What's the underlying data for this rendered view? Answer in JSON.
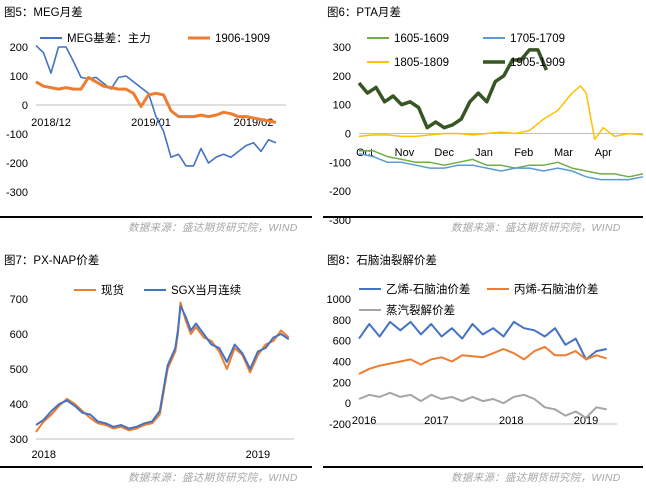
{
  "charts": [
    {
      "title": "图5：MEG月差",
      "source": "数据来源：盛达期货研究院，WIND",
      "chart_data": {
        "type": "line",
        "ylim": [
          -300,
          200
        ],
        "yticks": [
          "200",
          "100",
          "0",
          "-100",
          "-200",
          "-300"
        ],
        "xlim": [
          0,
          10
        ],
        "xticks": [
          {
            "pos": 0.6,
            "label": "2018/12"
          },
          {
            "pos": 4.6,
            "label": "2019/01"
          },
          {
            "pos": 8.7,
            "label": "2019/02"
          }
        ],
        "legend_position": "top",
        "grid": false,
        "series": [
          {
            "name": "MEG基差：主力",
            "color": "#4472c4",
            "width": 1.6,
            "x": [
              0,
              0.3,
              0.6,
              0.9,
              1.2,
              1.5,
              1.8,
              2.1,
              2.4,
              2.7,
              3.0,
              3.3,
              3.6,
              3.9,
              4.2,
              4.5,
              4.8,
              5.1,
              5.4,
              5.7,
              6.0,
              6.3,
              6.6,
              6.9,
              7.2,
              7.5,
              7.8,
              8.1,
              8.4,
              8.7,
              9.0,
              9.3,
              9.6
            ],
            "y": [
              205,
              180,
              110,
              200,
              200,
              150,
              95,
              90,
              95,
              75,
              55,
              95,
              100,
              80,
              60,
              40,
              -40,
              -90,
              -180,
              -170,
              -210,
              -210,
              -150,
              -200,
              -180,
              -170,
              -180,
              -160,
              -140,
              -130,
              -160,
              -120,
              -130
            ]
          },
          {
            "name": "1906-1909",
            "color": "#ed7d31",
            "width": 3,
            "x": [
              0,
              0.3,
              0.6,
              0.9,
              1.2,
              1.5,
              1.8,
              2.1,
              2.4,
              2.7,
              3.0,
              3.3,
              3.6,
              3.9,
              4.2,
              4.5,
              4.8,
              5.1,
              5.4,
              5.7,
              6.0,
              6.3,
              6.6,
              6.9,
              7.2,
              7.5,
              7.8,
              8.1,
              8.4,
              8.7,
              9.0,
              9.3,
              9.6
            ],
            "y": [
              80,
              65,
              60,
              55,
              60,
              55,
              55,
              95,
              80,
              65,
              60,
              55,
              55,
              40,
              -5,
              35,
              40,
              35,
              -20,
              -40,
              -40,
              -40,
              -35,
              -40,
              -35,
              -25,
              -30,
              -40,
              -40,
              -45,
              -50,
              -55,
              -60
            ]
          }
        ]
      }
    },
    {
      "title": "图6：PTA月差",
      "source": "数据来源：盛达期货研究院，WIND",
      "chart_data": {
        "type": "line",
        "ylim": [
          -300,
          300
        ],
        "yticks": [
          "300",
          "200",
          "100",
          "0",
          "-100",
          "-200",
          "-300"
        ],
        "xlim": [
          0,
          10
        ],
        "xticks": [
          {
            "pos": 0.2,
            "label": "Oct"
          },
          {
            "pos": 1.6,
            "label": "Nov"
          },
          {
            "pos": 3.0,
            "label": "Dec"
          },
          {
            "pos": 4.4,
            "label": "Jan"
          },
          {
            "pos": 5.8,
            "label": "Feb"
          },
          {
            "pos": 7.2,
            "label": "Mar"
          },
          {
            "pos": 8.6,
            "label": "Apr"
          }
        ],
        "legend_position": "top",
        "grid": false,
        "series": [
          {
            "name": "1605-1609",
            "color": "#70ad47",
            "width": 1.5,
            "x": [
              0,
              0.5,
              1.0,
              1.5,
              2.0,
              2.5,
              3.0,
              3.5,
              4.0,
              4.5,
              5.0,
              5.5,
              6.0,
              6.5,
              7.0,
              7.5,
              8.0,
              8.5,
              9.0,
              9.5,
              10.0
            ],
            "y": [
              -60,
              -60,
              -80,
              -90,
              -100,
              -100,
              -110,
              -100,
              -90,
              -110,
              -110,
              -120,
              -110,
              -110,
              -100,
              -120,
              -130,
              -140,
              -140,
              -150,
              -140
            ]
          },
          {
            "name": "1705-1709",
            "color": "#5b9bd5",
            "width": 1.5,
            "x": [
              0,
              0.5,
              1.0,
              1.5,
              2.0,
              2.5,
              3.0,
              3.5,
              4.0,
              4.5,
              5.0,
              5.5,
              6.0,
              6.5,
              7.0,
              7.5,
              8.0,
              8.5,
              9.0,
              9.5,
              10.0
            ],
            "y": [
              -70,
              -80,
              -100,
              -100,
              -110,
              -120,
              -120,
              -110,
              -110,
              -120,
              -130,
              -120,
              -120,
              -130,
              -120,
              -130,
              -150,
              -160,
              -160,
              -160,
              -150
            ]
          },
          {
            "name": "1805-1809",
            "color": "#ffc000",
            "width": 1.5,
            "x": [
              0,
              0.5,
              1.0,
              1.5,
              2.0,
              2.5,
              3.0,
              3.5,
              4.0,
              4.5,
              5.0,
              5.5,
              6.0,
              6.5,
              7.0,
              7.5,
              7.8,
              8.0,
              8.3,
              8.6,
              9.0,
              9.5,
              10.0
            ],
            "y": [
              -10,
              -5,
              -5,
              -10,
              -10,
              -5,
              0,
              0,
              -5,
              0,
              5,
              0,
              10,
              50,
              80,
              140,
              165,
              140,
              -20,
              20,
              -10,
              0,
              -5
            ]
          },
          {
            "name": "1905-1909",
            "color": "#375623",
            "width": 3.5,
            "x": [
              0,
              0.3,
              0.6,
              0.9,
              1.2,
              1.5,
              1.8,
              2.1,
              2.4,
              2.7,
              3.0,
              3.3,
              3.6,
              3.9,
              4.2,
              4.5,
              4.8,
              5.1,
              5.4,
              5.7,
              6.0,
              6.3,
              6.6
            ],
            "y": [
              175,
              140,
              160,
              110,
              130,
              100,
              110,
              90,
              20,
              40,
              20,
              30,
              50,
              110,
              140,
              110,
              180,
              200,
              255,
              255,
              290,
              290,
              220
            ]
          }
        ]
      }
    },
    {
      "title": "图7：PX-NAP价差",
      "source": "数据来源：盛达期货研究院，WIND",
      "chart_data": {
        "type": "line",
        "ylim": [
          300,
          700
        ],
        "yticks": [
          "700",
          "600",
          "500",
          "400",
          "300"
        ],
        "xlim": [
          0,
          10
        ],
        "xticks": [
          {
            "pos": 0.3,
            "label": "2018"
          },
          {
            "pos": 8.6,
            "label": "2019"
          }
        ],
        "legend_position": "top",
        "grid": false,
        "series": [
          {
            "name": "现货",
            "color": "#ed7d31",
            "width": 2,
            "x": [
              0,
              0.3,
              0.6,
              0.9,
              1.2,
              1.5,
              1.8,
              2.1,
              2.4,
              2.7,
              3.0,
              3.3,
              3.6,
              3.9,
              4.2,
              4.5,
              4.8,
              5.1,
              5.4,
              5.5,
              5.6,
              5.8,
              6.0,
              6.2,
              6.5,
              6.8,
              7.1,
              7.4,
              7.7,
              8.0,
              8.3,
              8.6,
              8.9,
              9.2,
              9.5,
              9.8
            ],
            "y": [
              320,
              350,
              370,
              395,
              415,
              400,
              380,
              360,
              345,
              340,
              330,
              335,
              325,
              330,
              340,
              345,
              370,
              500,
              550,
              600,
              690,
              640,
              600,
              620,
              590,
              580,
              550,
              500,
              560,
              540,
              490,
              540,
              570,
              580,
              610,
              590
            ]
          },
          {
            "name": "SGX当月连续",
            "color": "#4472c4",
            "width": 2,
            "x": [
              0,
              0.3,
              0.6,
              0.9,
              1.2,
              1.5,
              1.8,
              2.1,
              2.4,
              2.7,
              3.0,
              3.3,
              3.6,
              3.9,
              4.2,
              4.5,
              4.8,
              5.1,
              5.4,
              5.5,
              5.6,
              5.8,
              6.0,
              6.2,
              6.5,
              6.8,
              7.1,
              7.4,
              7.7,
              8.0,
              8.3,
              8.6,
              8.9,
              9.2,
              9.5,
              9.8
            ],
            "y": [
              340,
              355,
              380,
              400,
              410,
              395,
              375,
              370,
              350,
              345,
              335,
              340,
              330,
              335,
              345,
              350,
              380,
              510,
              560,
              610,
              680,
              650,
              610,
              630,
              600,
              570,
              560,
              520,
              570,
              545,
              500,
              550,
              560,
              590,
              600,
              585
            ]
          }
        ]
      }
    },
    {
      "title": "图8：石脑油裂解价差",
      "source": "数据来源：盛达期货研究院，WIND",
      "chart_data": {
        "type": "line",
        "ylim": [
          -200,
          1000
        ],
        "yticks": [
          "1000",
          "800",
          "600",
          "400",
          "200",
          "0",
          "-200"
        ],
        "xlim": [
          0,
          10
        ],
        "xticks": [
          {
            "pos": 0.2,
            "label": "2016"
          },
          {
            "pos": 3.0,
            "label": "2017"
          },
          {
            "pos": 5.9,
            "label": "2018"
          },
          {
            "pos": 8.8,
            "label": "2019"
          }
        ],
        "legend_position": "top",
        "grid": false,
        "series": [
          {
            "name": "乙烯-石脑油价差",
            "color": "#4472c4",
            "width": 2,
            "x": [
              0,
              0.4,
              0.8,
              1.2,
              1.6,
              2.0,
              2.4,
              2.8,
              3.2,
              3.6,
              4.0,
              4.4,
              4.8,
              5.2,
              5.6,
              6.0,
              6.4,
              6.8,
              7.2,
              7.6,
              8.0,
              8.4,
              8.8,
              9.2,
              9.6
            ],
            "y": [
              620,
              760,
              640,
              780,
              700,
              780,
              660,
              760,
              640,
              720,
              620,
              760,
              660,
              720,
              640,
              780,
              720,
              700,
              640,
              720,
              560,
              620,
              420,
              500,
              520
            ]
          },
          {
            "name": "丙烯-石脑油价差",
            "color": "#ed7d31",
            "width": 2,
            "x": [
              0,
              0.4,
              0.8,
              1.2,
              1.6,
              2.0,
              2.4,
              2.8,
              3.2,
              3.6,
              4.0,
              4.4,
              4.8,
              5.2,
              5.6,
              6.0,
              6.4,
              6.8,
              7.2,
              7.6,
              8.0,
              8.4,
              8.8,
              9.2,
              9.6
            ],
            "y": [
              280,
              330,
              360,
              380,
              400,
              420,
              370,
              420,
              440,
              400,
              460,
              450,
              440,
              480,
              520,
              480,
              420,
              500,
              540,
              460,
              460,
              500,
              420,
              460,
              430
            ]
          },
          {
            "name": "蒸汽裂解价差",
            "color": "#a5a5a5",
            "width": 2,
            "x": [
              0,
              0.4,
              0.8,
              1.2,
              1.6,
              2.0,
              2.4,
              2.8,
              3.2,
              3.6,
              4.0,
              4.4,
              4.8,
              5.2,
              5.6,
              6.0,
              6.4,
              6.8,
              7.2,
              7.6,
              8.0,
              8.4,
              8.8,
              9.2,
              9.6
            ],
            "y": [
              40,
              80,
              60,
              100,
              60,
              80,
              20,
              80,
              40,
              60,
              20,
              60,
              20,
              40,
              0,
              60,
              80,
              40,
              -40,
              -60,
              -120,
              -80,
              -140,
              -40,
              -60
            ]
          }
        ]
      }
    }
  ]
}
